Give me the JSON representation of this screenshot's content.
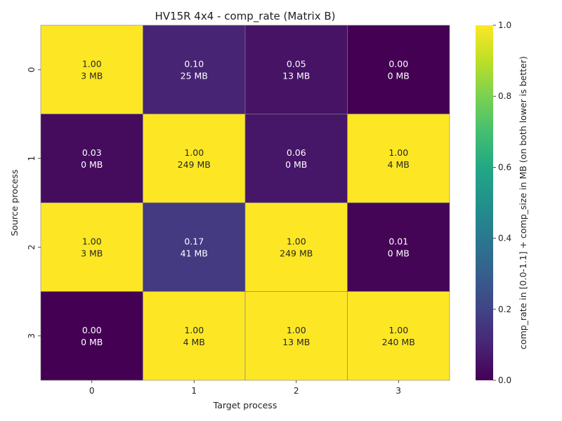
{
  "chart_data": {
    "type": "heatmap",
    "title": "HV15R 4x4 - comp_rate (Matrix B)",
    "xlabel": "Target process",
    "ylabel": "Source process",
    "x_categories": [
      "0",
      "1",
      "2",
      "3"
    ],
    "y_categories": [
      "0",
      "1",
      "2",
      "3"
    ],
    "values": [
      [
        1.0,
        0.1,
        0.05,
        0.0
      ],
      [
        0.03,
        1.0,
        0.06,
        1.0
      ],
      [
        1.0,
        0.17,
        1.0,
        0.01
      ],
      [
        0.0,
        1.0,
        1.0,
        1.0
      ]
    ],
    "cell_labels": [
      [
        [
          "1.00",
          "3 MB"
        ],
        [
          "0.10",
          "25 MB"
        ],
        [
          "0.05",
          "13 MB"
        ],
        [
          "0.00",
          "0 MB"
        ]
      ],
      [
        [
          "0.03",
          "0 MB"
        ],
        [
          "1.00",
          "249 MB"
        ],
        [
          "0.06",
          "0 MB"
        ],
        [
          "1.00",
          "4 MB"
        ]
      ],
      [
        [
          "1.00",
          "3 MB"
        ],
        [
          "0.17",
          "41 MB"
        ],
        [
          "1.00",
          "249 MB"
        ],
        [
          "0.01",
          "0 MB"
        ]
      ],
      [
        [
          "0.00",
          "0 MB"
        ],
        [
          "1.00",
          "4 MB"
        ],
        [
          "1.00",
          "13 MB"
        ],
        [
          "1.00",
          "240 MB"
        ]
      ]
    ],
    "colormap": "viridis",
    "vmin": 0.0,
    "vmax": 1.0,
    "colorbar": {
      "label": "comp_rate in [0.0-1.1] + comp_size in MB (on both lower is better)",
      "ticks": [
        "0.0",
        "0.2",
        "0.4",
        "0.6",
        "0.8",
        "1.0"
      ],
      "tick_values": [
        0.0,
        0.2,
        0.4,
        0.6,
        0.8,
        1.0
      ]
    },
    "grid_color": "#808080",
    "dark_text_color": "#262626",
    "light_text_color": "#ffffff"
  }
}
